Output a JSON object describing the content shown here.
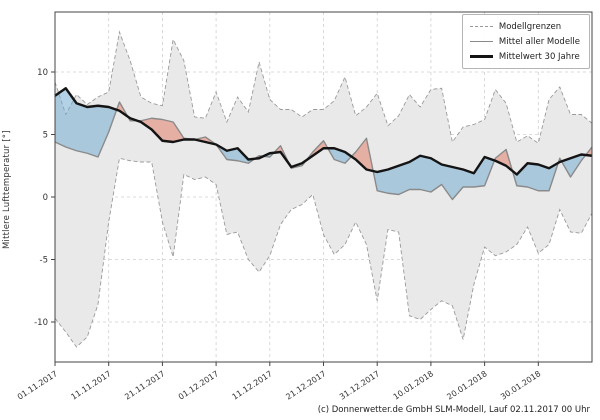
{
  "chart_data": {
    "type": "area",
    "title": "",
    "ylabel": "Mittlere Lufttemperatur [°]",
    "caption": "(c) Donnerwetter.de GmbH SLM-Modell, Lauf 02.11.2017 00 Uhr",
    "legend": {
      "position": "top-right",
      "entries": [
        {
          "label": "Modellgrenzen",
          "style": "dashed-gray"
        },
        {
          "label": "Mittel aller Modelle",
          "style": "solid-gray"
        },
        {
          "label": "Mittelwert 30 Jahre",
          "style": "thick-black"
        }
      ]
    },
    "x_axis": {
      "range_days": [
        0,
        100
      ],
      "tick_days": [
        0,
        10,
        20,
        30,
        40,
        50,
        60,
        70,
        80,
        90
      ],
      "tick_labels": [
        "01.11.2017",
        "11.11.2017",
        "21.11.2017",
        "01.12.2017",
        "11.12.2017",
        "21.12.2017",
        "31.12.2017",
        "10.01.2018",
        "20.01.2018",
        "30.01.2018"
      ],
      "grid": true
    },
    "y_axis": {
      "ticks": [
        10,
        5,
        0,
        -5,
        -10
      ],
      "range": [
        -13.2,
        14.8
      ],
      "grid": true
    },
    "day_step": 2,
    "series": [
      {
        "name": "Modellgrenzen (obere Grenze)",
        "role": "upper_bound",
        "values": [
          9.2,
          6.6,
          8.2,
          7.4,
          8.0,
          8.4,
          13.2,
          10.9,
          8.0,
          7.5,
          7.3,
          12.6,
          10.9,
          6.4,
          6.3,
          8.4,
          6.0,
          8.0,
          6.8,
          10.8,
          7.8,
          7.0,
          7.0,
          6.4,
          7.0,
          7.0,
          7.7,
          9.6,
          6.5,
          7.2,
          8.3,
          5.7,
          6.5,
          8.2,
          7.2,
          8.6,
          8.7,
          4.4,
          5.6,
          5.8,
          6.2,
          8.6,
          7.5,
          4.4,
          4.9,
          4.3,
          7.8,
          8.8,
          6.6,
          6.6,
          5.9
        ]
      },
      {
        "name": "Modellgrenzen (untere Grenze)",
        "role": "lower_bound",
        "values": [
          -9.7,
          -10.8,
          -12.0,
          -11.2,
          -8.6,
          -2.0,
          3.1,
          2.9,
          2.8,
          2.8,
          -2.0,
          -4.8,
          1.8,
          1.4,
          1.6,
          1.0,
          -3.0,
          -2.8,
          -5.0,
          -6.0,
          -4.7,
          -2.2,
          -1.0,
          -0.6,
          0.2,
          -3.0,
          -4.6,
          -3.8,
          -2.0,
          -3.8,
          -8.3,
          -2.6,
          -2.8,
          -9.5,
          -9.8,
          -9.0,
          -8.3,
          -8.7,
          -11.4,
          -7.0,
          -4.0,
          -4.7,
          -4.4,
          -3.8,
          -2.4,
          -4.5,
          -3.8,
          -1.0,
          -2.8,
          -2.9,
          -1.3
        ]
      },
      {
        "name": "Mittel aller Modelle",
        "role": "model_mean",
        "values": [
          4.4,
          4.0,
          3.7,
          3.5,
          3.2,
          5.2,
          7.6,
          6.1,
          6.1,
          6.3,
          6.2,
          6.0,
          4.7,
          4.6,
          4.8,
          4.2,
          3.0,
          2.9,
          2.7,
          3.3,
          3.2,
          4.1,
          2.3,
          2.5,
          3.6,
          4.5,
          3.0,
          2.7,
          3.6,
          4.7,
          0.5,
          0.3,
          0.2,
          0.6,
          0.6,
          0.4,
          1.0,
          -0.2,
          0.8,
          0.8,
          0.9,
          3.1,
          3.8,
          0.9,
          0.8,
          0.5,
          0.5,
          3.1,
          1.6,
          2.9,
          4.0
        ]
      },
      {
        "name": "Mittelwert 30 Jahre",
        "role": "climate_mean",
        "values": [
          8.1,
          8.7,
          7.5,
          7.2,
          7.3,
          7.2,
          6.9,
          6.3,
          6.0,
          5.4,
          4.5,
          4.4,
          4.6,
          4.6,
          4.4,
          4.2,
          3.7,
          3.9,
          3.0,
          3.1,
          3.5,
          3.6,
          2.4,
          2.7,
          3.3,
          3.9,
          3.9,
          3.6,
          3.0,
          2.2,
          2.0,
          2.2,
          2.5,
          2.8,
          3.3,
          3.1,
          2.6,
          2.4,
          2.2,
          1.9,
          3.2,
          2.9,
          2.5,
          1.8,
          2.7,
          2.6,
          2.3,
          2.8,
          3.1,
          3.4,
          3.3
        ]
      }
    ],
    "colors": {
      "envelope_fill": "#e9e9e9",
      "envelope_border": "#9a9a9a",
      "model_mean_line": "#8a8a8a",
      "climate_line": "#141414",
      "warm_fill": "rgba(226,128,108,0.55)",
      "cold_fill": "rgba(116,173,209,0.55)",
      "grid": "#cfcfcf",
      "axis": "#444444",
      "tick_text": "#333333"
    }
  }
}
